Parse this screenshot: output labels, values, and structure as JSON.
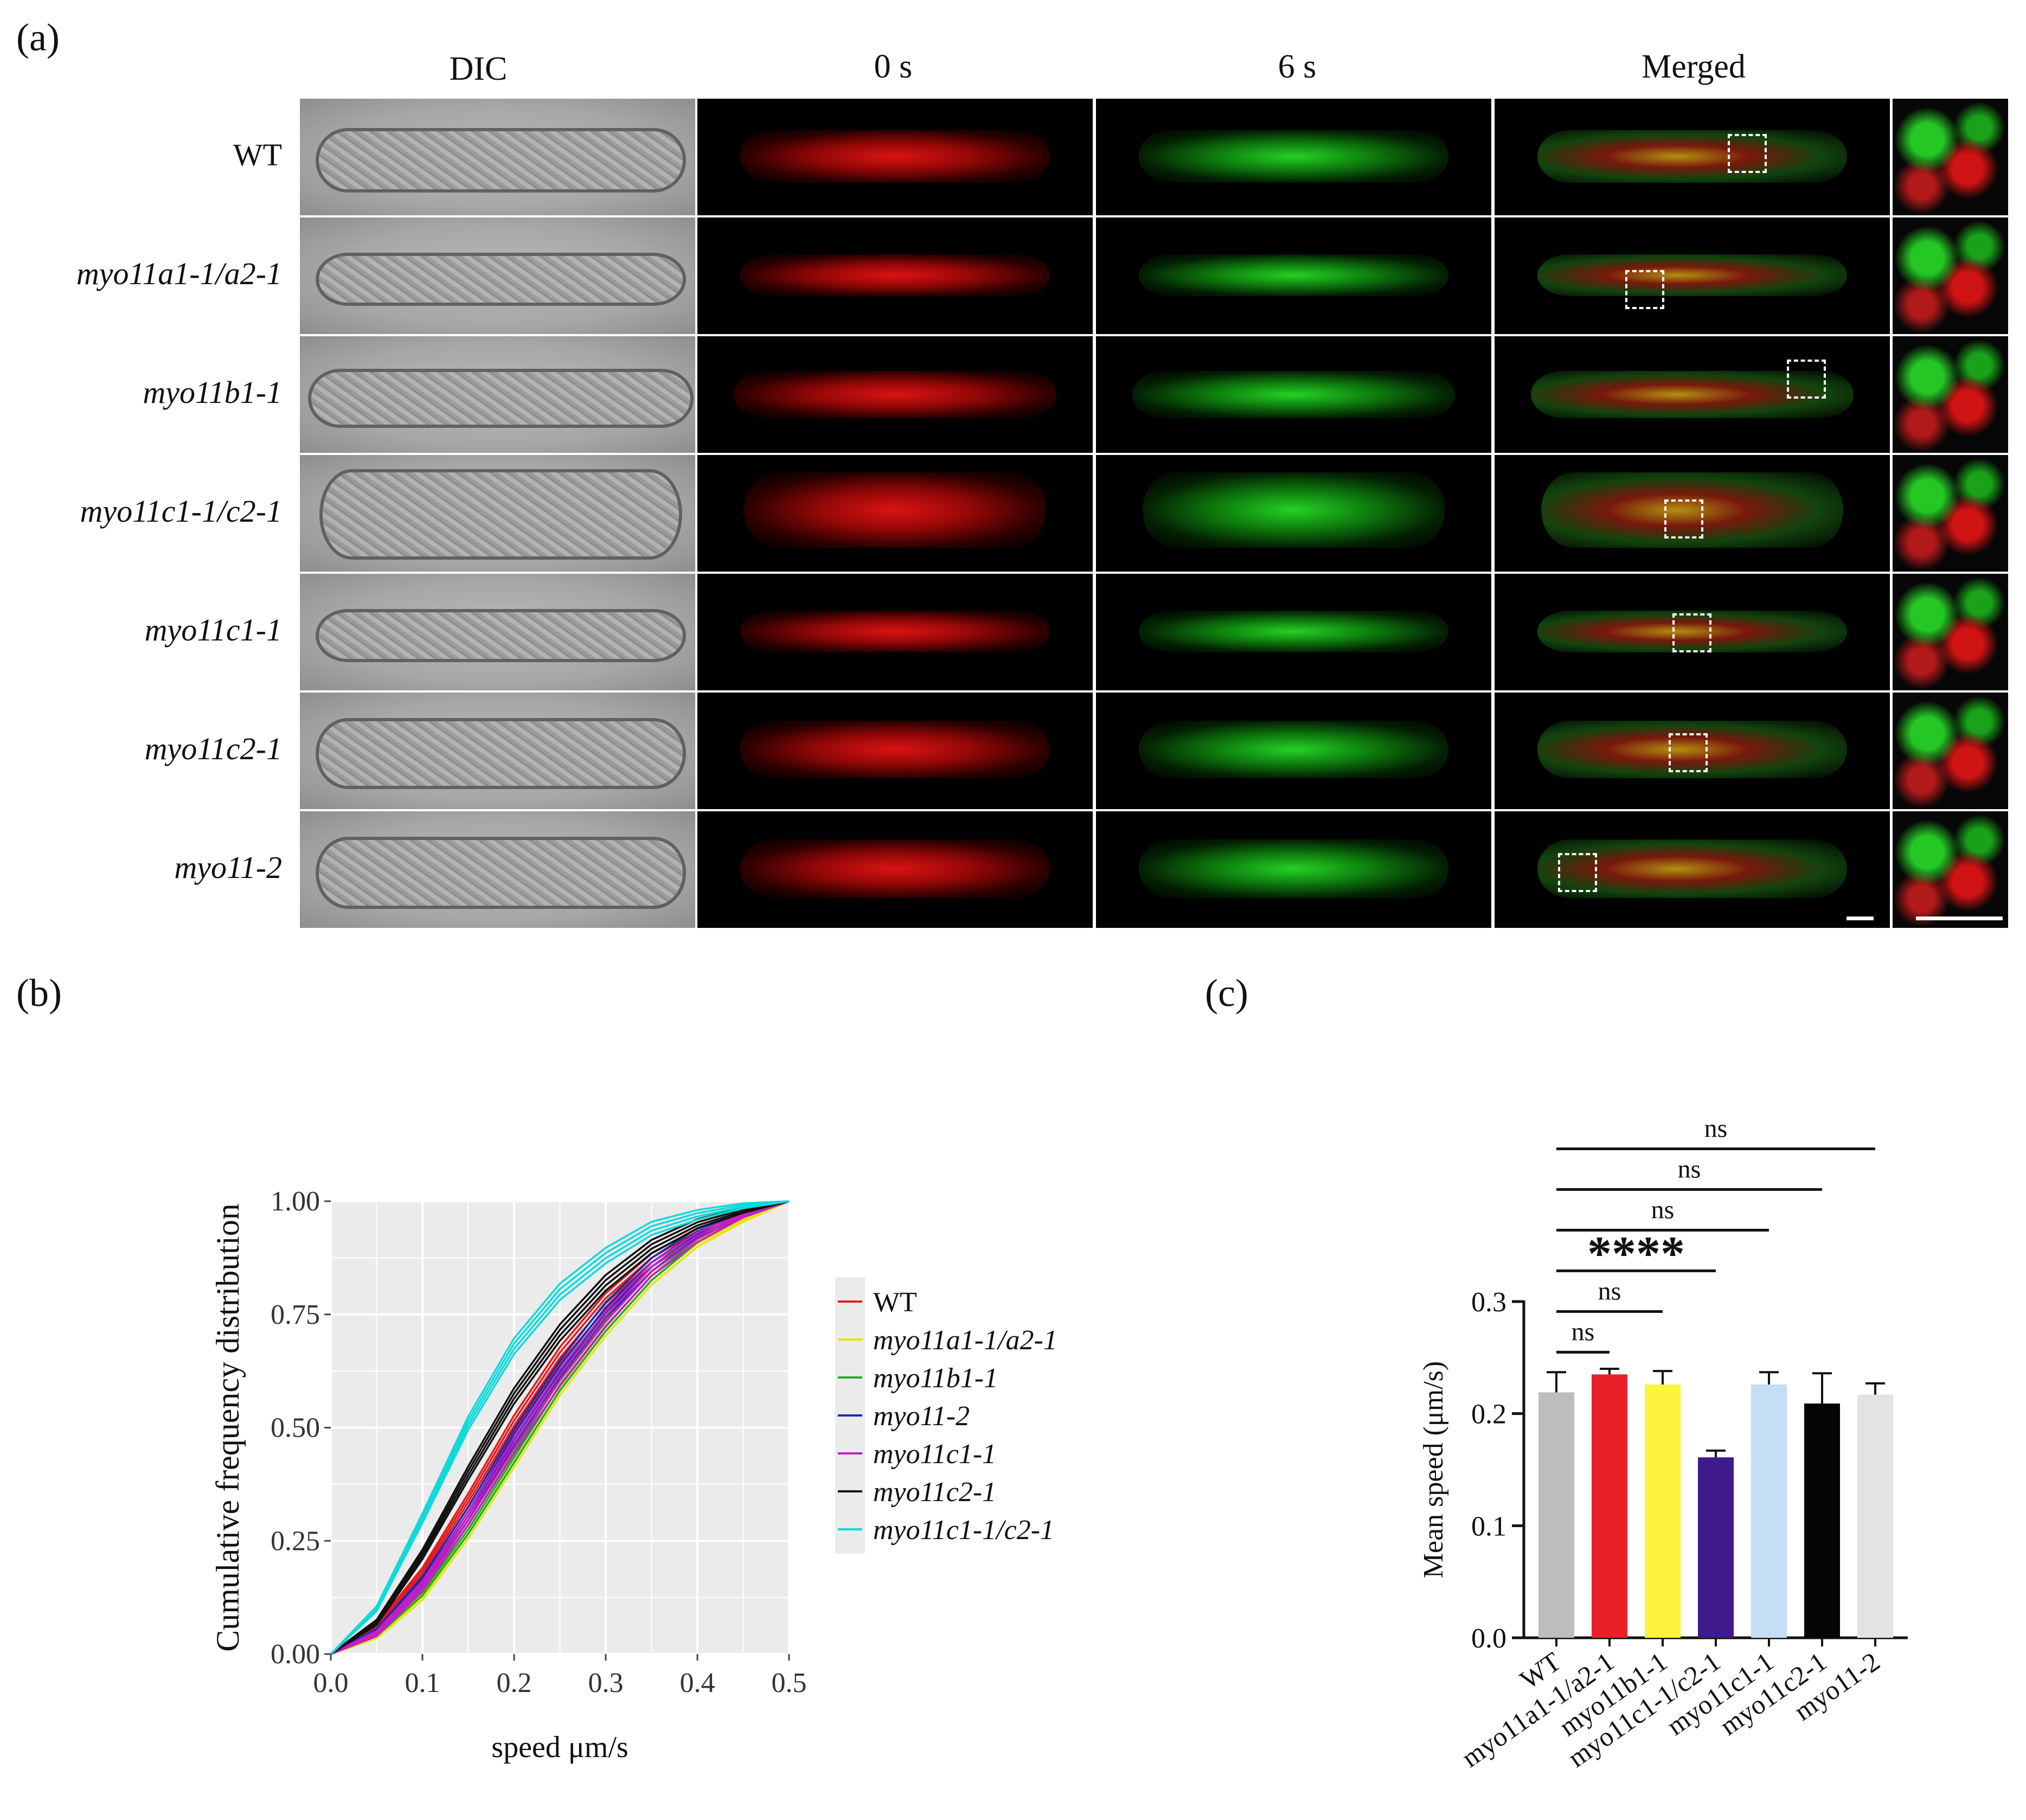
{
  "panel_a": {
    "label": "(a)",
    "columns": [
      "DIC",
      "0 s",
      "6 s",
      "Merged"
    ],
    "rows": [
      "WT",
      "myo11a1-1/a2-1",
      "myo11b1-1",
      "myo11c1-1/c2-1",
      "myo11c1-1",
      "myo11c2-1",
      "myo11-2"
    ]
  },
  "panel_b": {
    "label": "(b)"
  },
  "panel_c": {
    "label": "(c)"
  },
  "chart_data": [
    {
      "type": "line",
      "title": "",
      "xlabel": "speed μm/s",
      "ylabel": "Cumulative frequency distribution",
      "xlim": [
        0.0,
        0.5
      ],
      "ylim": [
        0.0,
        1.0
      ],
      "xticks": [
        "0.0",
        "0.1",
        "0.2",
        "0.3",
        "0.4",
        "0.5"
      ],
      "yticks": [
        "0.00",
        "0.25",
        "0.50",
        "0.75",
        "1.00"
      ],
      "grid": true,
      "legend_position": "right",
      "x": [
        0.0,
        0.05,
        0.1,
        0.15,
        0.2,
        0.25,
        0.3,
        0.35,
        0.4,
        0.45,
        0.5
      ],
      "series": [
        {
          "name": "WT",
          "color": "#e41a1c",
          "values": [
            0.0,
            0.06,
            0.18,
            0.34,
            0.51,
            0.66,
            0.78,
            0.87,
            0.93,
            0.97,
            1.0
          ]
        },
        {
          "name": "myo11a1-1/a2-1",
          "color": "#e5e500",
          "values": [
            0.0,
            0.04,
            0.13,
            0.27,
            0.43,
            0.59,
            0.72,
            0.83,
            0.91,
            0.96,
            1.0
          ]
        },
        {
          "name": "myo11b1-1",
          "color": "#1fae1f",
          "values": [
            0.0,
            0.045,
            0.14,
            0.28,
            0.44,
            0.6,
            0.73,
            0.84,
            0.92,
            0.97,
            1.0
          ]
        },
        {
          "name": "myo11-2",
          "color": "#1c2ab5",
          "values": [
            0.0,
            0.05,
            0.16,
            0.31,
            0.48,
            0.63,
            0.76,
            0.86,
            0.93,
            0.97,
            1.0
          ]
        },
        {
          "name": "myo11c1-1",
          "color": "#c41ec4",
          "values": [
            0.0,
            0.045,
            0.15,
            0.3,
            0.46,
            0.61,
            0.74,
            0.85,
            0.92,
            0.97,
            1.0
          ]
        },
        {
          "name": "myo11c2-1",
          "color": "#111111",
          "values": [
            0.0,
            0.07,
            0.22,
            0.4,
            0.57,
            0.71,
            0.82,
            0.9,
            0.95,
            0.98,
            1.0
          ]
        },
        {
          "name": "myo11c1-1/c2-1",
          "color": "#11d9d9",
          "values": [
            0.0,
            0.1,
            0.3,
            0.51,
            0.68,
            0.8,
            0.88,
            0.94,
            0.97,
            0.99,
            1.0
          ]
        }
      ]
    },
    {
      "type": "bar",
      "title": "",
      "xlabel": "",
      "ylabel": "Mean speed (μm/s)",
      "ylim": [
        0.0,
        0.3
      ],
      "yticks": [
        "0.0",
        "0.1",
        "0.2",
        "0.3"
      ],
      "categories": [
        "WT",
        "myo11a1-1/a2-1",
        "myo11b1-1",
        "myo11c1-1/c2-1",
        "myo11c1-1",
        "myo11c2-1",
        "myo11-2"
      ],
      "values": [
        0.219,
        0.235,
        0.226,
        0.161,
        0.226,
        0.209,
        0.217
      ],
      "errors": [
        0.018,
        0.005,
        0.012,
        0.006,
        0.011,
        0.027,
        0.01
      ],
      "colors": [
        "#bdbdbd",
        "#e8202a",
        "#fbf43a",
        "#3f1a8c",
        "#c6ddf6",
        "#050505",
        "#e3e3e3"
      ],
      "comparisons": [
        {
          "from": "WT",
          "to": "myo11a1-1/a2-1",
          "label": "ns"
        },
        {
          "from": "WT",
          "to": "myo11b1-1",
          "label": "ns"
        },
        {
          "from": "WT",
          "to": "myo11c1-1/c2-1",
          "label": "****"
        },
        {
          "from": "WT",
          "to": "myo11c1-1",
          "label": "ns"
        },
        {
          "from": "WT",
          "to": "myo11c2-1",
          "label": "ns"
        },
        {
          "from": "WT",
          "to": "myo11-2",
          "label": "ns"
        }
      ]
    }
  ]
}
